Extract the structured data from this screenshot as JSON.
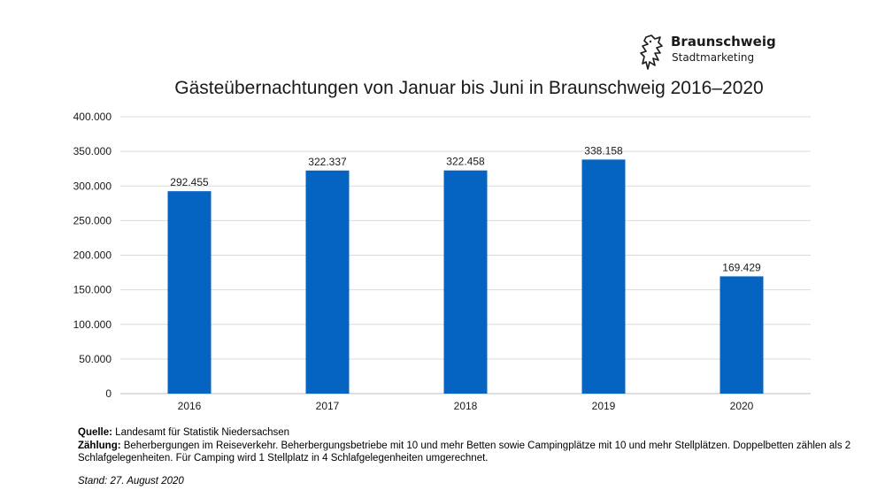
{
  "brand": {
    "name": "Braunschweig",
    "sub": "Stadtmarketing",
    "icon": "lion-icon"
  },
  "chart_data": {
    "type": "bar",
    "title": "Gästeübernachtungen von Januar bis Juni in Braunschweig 2016–2020",
    "categories": [
      "2016",
      "2017",
      "2018",
      "2019",
      "2020"
    ],
    "values": [
      292455,
      322337,
      322458,
      338158,
      169429
    ],
    "value_labels": [
      "292.455",
      "322.337",
      "322.458",
      "338.158",
      "169.429"
    ],
    "ylim": [
      0,
      400000
    ],
    "yticks": [
      0,
      50000,
      100000,
      150000,
      200000,
      250000,
      300000,
      350000,
      400000
    ],
    "ytick_labels": [
      "0",
      "50.000",
      "100.000",
      "150.000",
      "200.000",
      "250.000",
      "300.000",
      "350.000",
      "400.000"
    ],
    "bar_color": "#0563C1",
    "grid": true,
    "xlabel": "",
    "ylabel": ""
  },
  "footer": {
    "source_label": "Quelle:",
    "source_text": " Landesamt für Statistik Niedersachsen",
    "count_label": "Zählung:",
    "count_text": " Beherbergungen im Reiseverkehr. Beherbergungsbetriebe mit 10 und mehr Betten sowie Campingplätze mit 10 und mehr Stellplätzen. Doppelbetten zählen als 2 Schlafgelegenheiten. Für Camping wird 1 Stellplatz in 4 Schlafgelegenheiten umgerechnet.",
    "stand": "Stand: 27. August 2020"
  }
}
